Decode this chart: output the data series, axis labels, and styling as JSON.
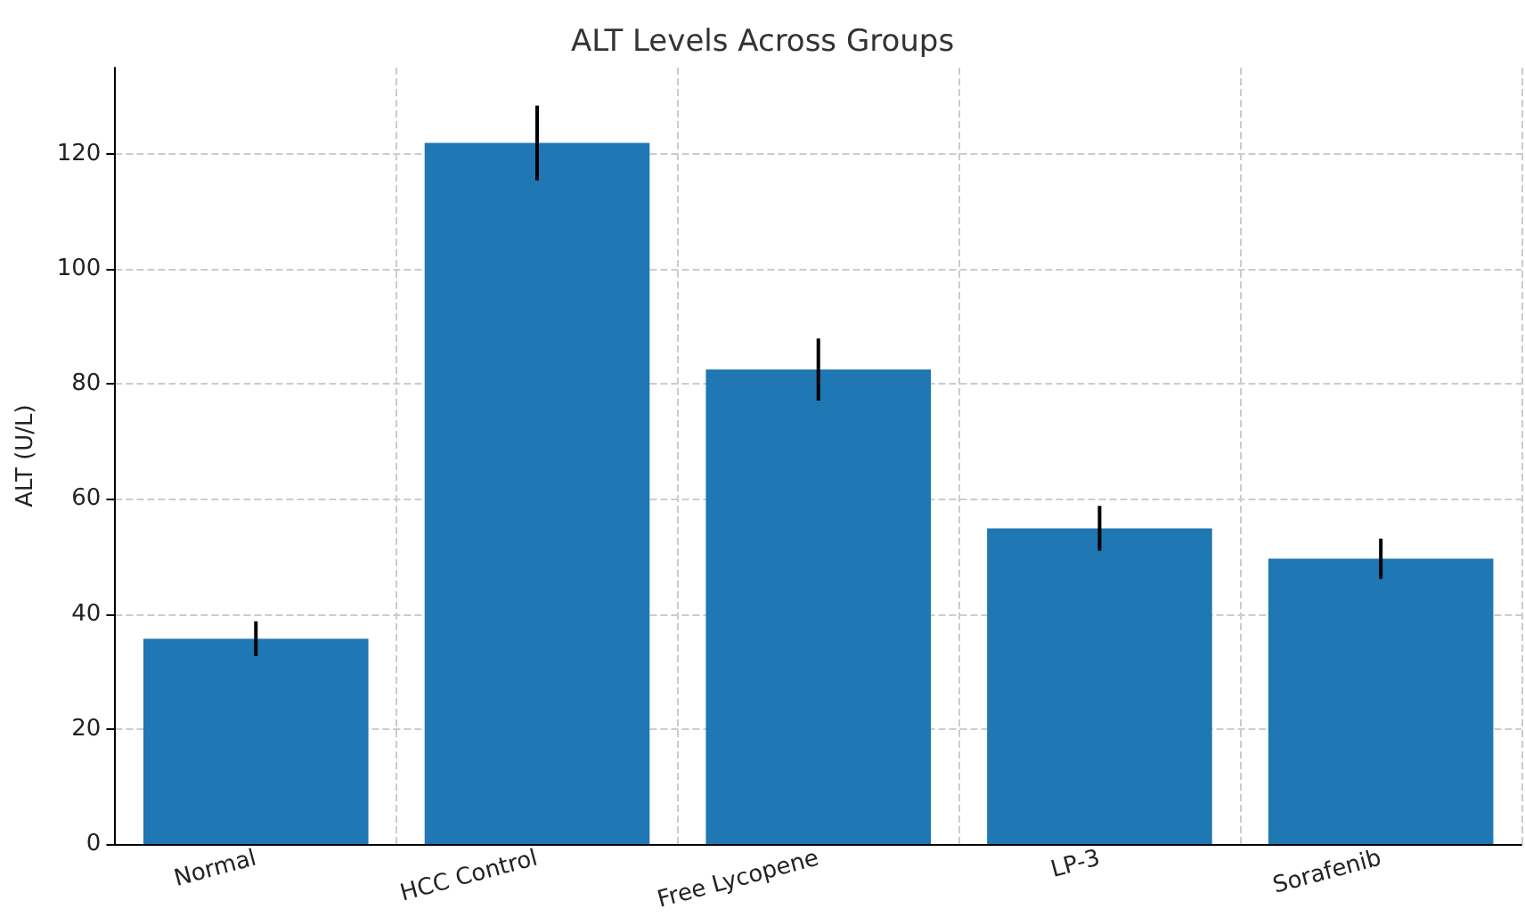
{
  "chart_data": {
    "type": "bar",
    "title": "ALT Levels Across Groups",
    "ylabel": "ALT (U/L)",
    "categories": [
      "Normal",
      "HCC Control",
      "Free Lycopene",
      "LP-3",
      "Sorafenib"
    ],
    "values": [
      35.7,
      121.9,
      82.5,
      54.9,
      49.6
    ],
    "errors": [
      3,
      6.5,
      5.4,
      3.9,
      3.5
    ],
    "color": "#1f77b4",
    "ylim": [
      0,
      135
    ],
    "yticks": [
      0,
      20,
      40,
      60,
      80,
      100,
      120
    ],
    "grid": true
  }
}
